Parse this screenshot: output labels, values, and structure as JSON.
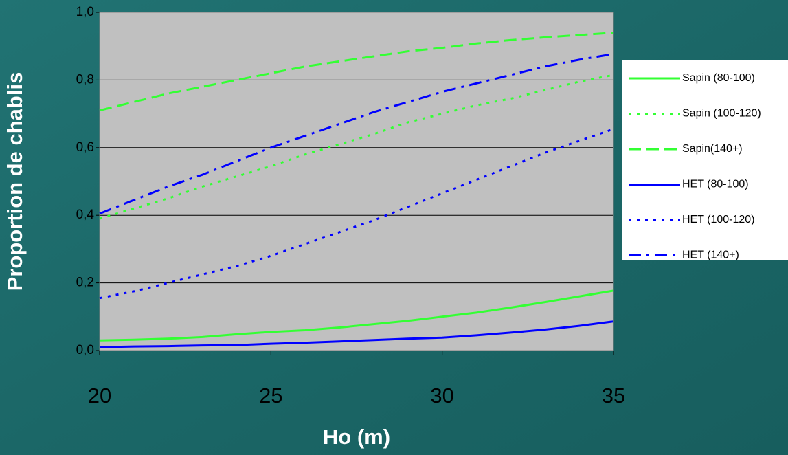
{
  "chart_data": {
    "type": "line",
    "x_label": "Ho (m)",
    "y_label": "Proportion de chablis",
    "x": [
      20,
      21,
      22,
      23,
      24,
      25,
      26,
      27,
      28,
      29,
      30,
      31,
      32,
      33,
      34,
      35
    ],
    "series": [
      {
        "name": "Sapin (80-100)",
        "color": "#33ff33",
        "dash": "solid",
        "values": [
          0.03,
          0.032,
          0.035,
          0.04,
          0.048,
          0.055,
          0.06,
          0.068,
          0.078,
          0.088,
          0.1,
          0.112,
          0.127,
          0.143,
          0.16,
          0.177
        ]
      },
      {
        "name": "Sapin (100-120)",
        "color": "#33ff33",
        "dash": "dot",
        "values": [
          0.39,
          0.42,
          0.45,
          0.485,
          0.515,
          0.545,
          0.58,
          0.61,
          0.64,
          0.675,
          0.7,
          0.725,
          0.745,
          0.77,
          0.795,
          0.815
        ]
      },
      {
        "name": "Sapin(140+)",
        "color": "#33ff33",
        "dash": "dash",
        "values": [
          0.71,
          0.735,
          0.76,
          0.78,
          0.8,
          0.82,
          0.84,
          0.855,
          0.87,
          0.885,
          0.895,
          0.908,
          0.918,
          0.926,
          0.933,
          0.94
        ]
      },
      {
        "name": "HET (80-100)",
        "color": "#0000ff",
        "dash": "solid",
        "values": [
          0.01,
          0.012,
          0.013,
          0.015,
          0.016,
          0.02,
          0.023,
          0.027,
          0.031,
          0.035,
          0.038,
          0.045,
          0.053,
          0.062,
          0.073,
          0.086
        ]
      },
      {
        "name": "HET (100-120)",
        "color": "#0000ff",
        "dash": "dot",
        "values": [
          0.155,
          0.175,
          0.2,
          0.225,
          0.25,
          0.28,
          0.315,
          0.35,
          0.385,
          0.425,
          0.465,
          0.505,
          0.545,
          0.585,
          0.62,
          0.655
        ]
      },
      {
        "name": "HET (140+)",
        "color": "#0000ff",
        "dash": "dashdot",
        "values": [
          0.405,
          0.445,
          0.485,
          0.52,
          0.56,
          0.6,
          0.635,
          0.67,
          0.705,
          0.735,
          0.765,
          0.79,
          0.815,
          0.84,
          0.86,
          0.877
        ]
      }
    ],
    "xlim": [
      20,
      35
    ],
    "xticks": [
      20,
      25,
      30,
      35
    ],
    "ylim": [
      0,
      1
    ],
    "yticks": [
      {
        "value": 0,
        "label": "0,0"
      },
      {
        "value": 0.2,
        "label": "0,2"
      },
      {
        "value": 0.4,
        "label": "0,4"
      },
      {
        "value": 0.6,
        "label": "0,6"
      },
      {
        "value": 0.8,
        "label": "0,8"
      },
      {
        "value": 1,
        "label": "1,0"
      }
    ],
    "grid": true,
    "legend": "right"
  }
}
